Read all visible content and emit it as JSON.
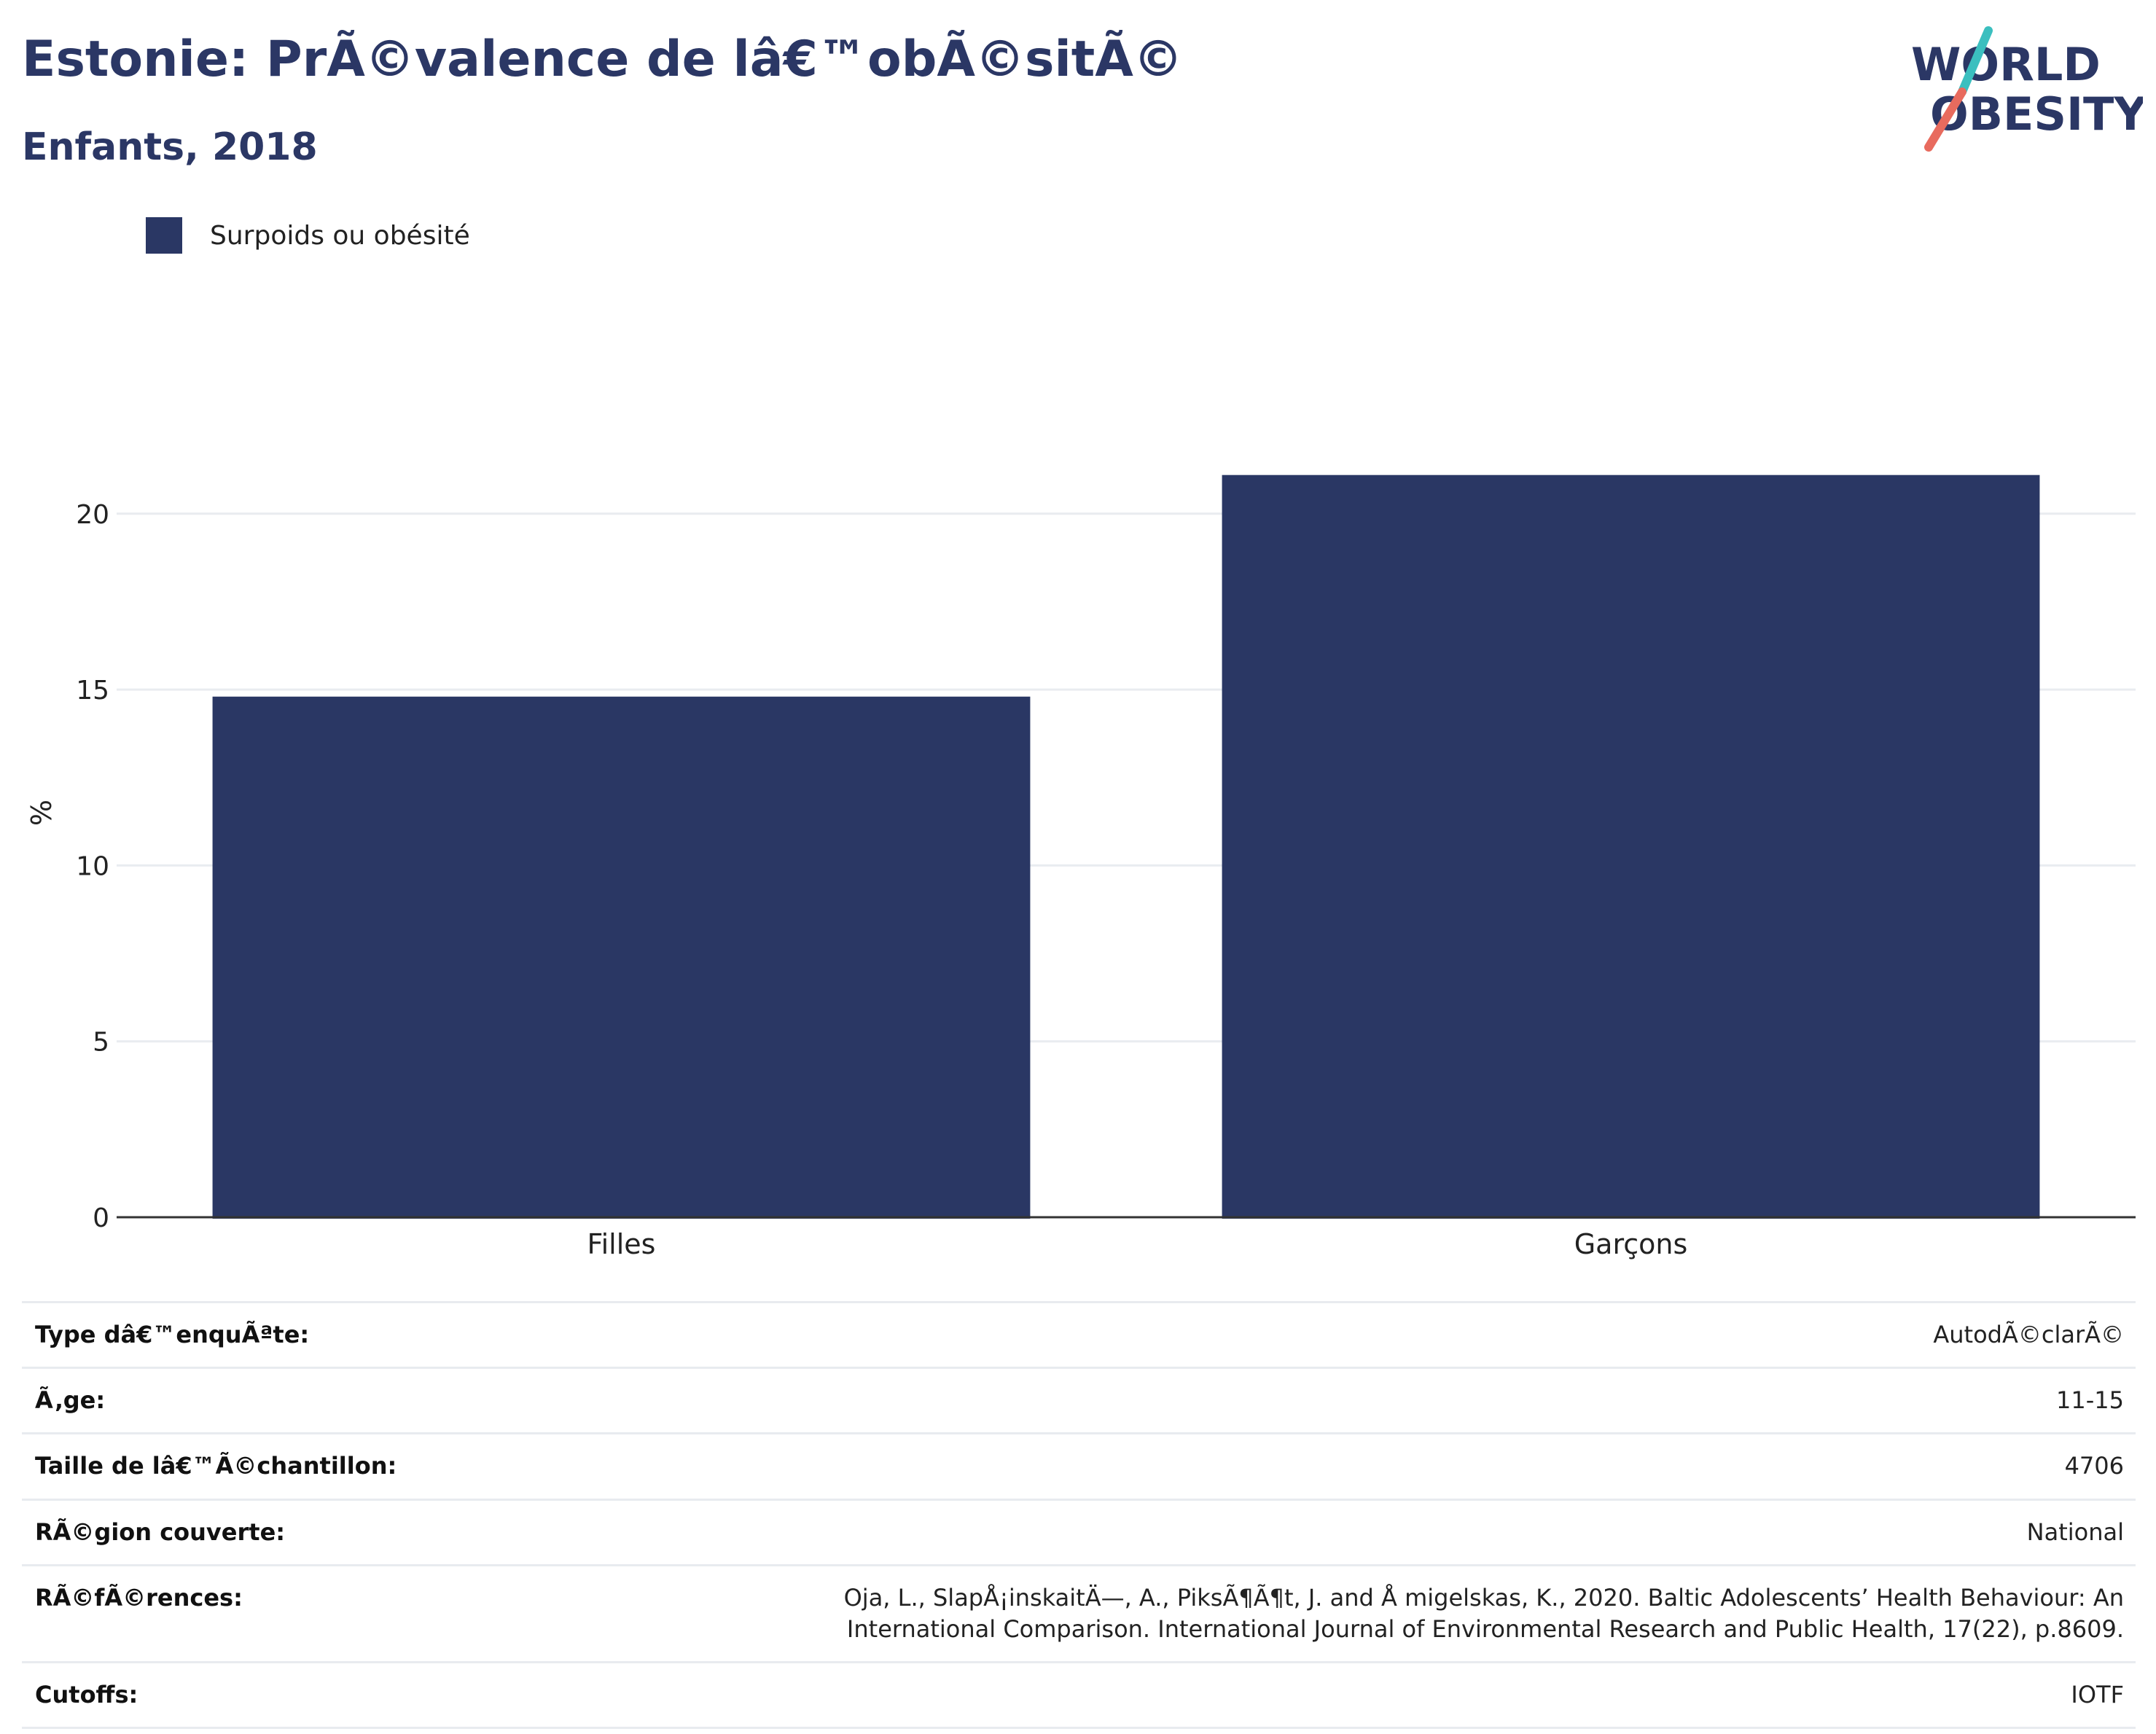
{
  "header": {
    "title": "Estonie: PrÃ©valence de lâ€™obÃ©sitÃ©",
    "subtitle": "Enfants, 2018"
  },
  "logo": {
    "line1": "WORLD",
    "line2": "OBESITY",
    "colors": {
      "text": "#2b3765",
      "slash_top": "#3bbfbf",
      "slash_bottom": "#e86b5e"
    }
  },
  "chart_data": {
    "type": "bar",
    "categories": [
      "Filles",
      "Garçons"
    ],
    "series": [
      {
        "name": "Surpoids ou obésité",
        "values": [
          14.8,
          21.1
        ],
        "color": "#2a3764"
      }
    ],
    "title": "Estonie: PrÃ©valence de lâ€™obÃ©sitÃ©",
    "subtitle": "Enfants, 2018",
    "xlabel": "",
    "ylabel": "%",
    "ylim": [
      0,
      23
    ],
    "yticks": [
      0,
      5,
      10,
      15,
      20
    ],
    "grid": true,
    "legend": "top-left"
  },
  "info": [
    {
      "label": "Type dâ€™enquÃªte:",
      "value": "AutodÃ©clarÃ©"
    },
    {
      "label": "Ã‚ge:",
      "value": "11-15"
    },
    {
      "label": "Taille de lâ€™Ã©chantillon:",
      "value": "4706"
    },
    {
      "label": "RÃ©gion couverte:",
      "value": "National"
    },
    {
      "label": "RÃ©fÃ©rences:",
      "value": "Oja, L., SlapÅ¡inskaitÄ—, A., PiksÃ¶Ã¶t, J. and Å migelskas, K., 2020. Baltic Adolescents’ Health Behaviour: An International Comparison. International Journal of Environmental Research and Public Health, 17(22), p.8609."
    },
    {
      "label": "Cutoffs:",
      "value": "IOTF"
    }
  ]
}
